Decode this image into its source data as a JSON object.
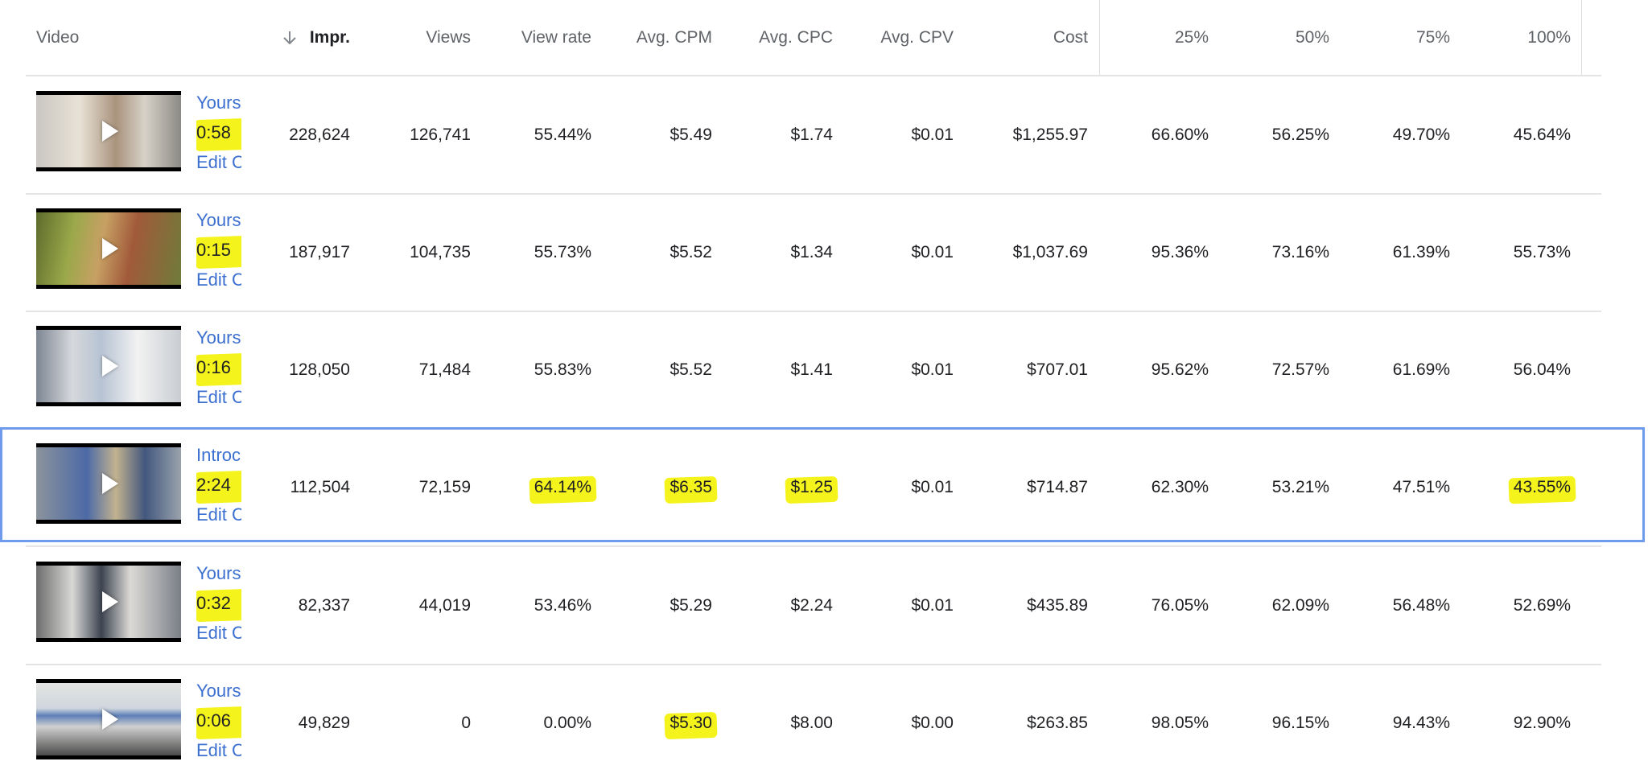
{
  "columns": [
    {
      "key": "video",
      "label": "Video"
    },
    {
      "key": "impr",
      "label": "Impr."
    },
    {
      "key": "views",
      "label": "Views"
    },
    {
      "key": "view_rate",
      "label": "View rate"
    },
    {
      "key": "avg_cpm",
      "label": "Avg. CPM"
    },
    {
      "key": "avg_cpc",
      "label": "Avg. CPC"
    },
    {
      "key": "avg_cpv",
      "label": "Avg. CPV"
    },
    {
      "key": "cost",
      "label": "Cost"
    },
    {
      "key": "p25",
      "label": "25%"
    },
    {
      "key": "p50",
      "label": "50%"
    },
    {
      "key": "p75",
      "label": "75%"
    },
    {
      "key": "p100",
      "label": "100%"
    }
  ],
  "sort": {
    "column": "impr",
    "direction": "descending",
    "icon": "arrow-down-icon"
  },
  "rows": [
    {
      "title": "Yours",
      "duration": "0:58",
      "edit": "Edit C",
      "impr": "228,624",
      "views": "126,741",
      "view_rate": "55.44%",
      "avg_cpm": "$5.49",
      "avg_cpc": "$1.74",
      "avg_cpv": "$0.01",
      "cost": "$1,255.97",
      "p25": "66.60%",
      "p50": "56.25%",
      "p75": "49.70%",
      "p100": "45.64%",
      "highlighted": [
        "duration"
      ],
      "selected": false
    },
    {
      "title": "Yours",
      "duration": "0:15",
      "edit": "Edit C",
      "impr": "187,917",
      "views": "104,735",
      "view_rate": "55.73%",
      "avg_cpm": "$5.52",
      "avg_cpc": "$1.34",
      "avg_cpv": "$0.01",
      "cost": "$1,037.69",
      "p25": "95.36%",
      "p50": "73.16%",
      "p75": "61.39%",
      "p100": "55.73%",
      "highlighted": [
        "duration"
      ],
      "selected": false
    },
    {
      "title": "Yours",
      "duration": "0:16",
      "edit": "Edit C",
      "impr": "128,050",
      "views": "71,484",
      "view_rate": "55.83%",
      "avg_cpm": "$5.52",
      "avg_cpc": "$1.41",
      "avg_cpv": "$0.01",
      "cost": "$707.01",
      "p25": "95.62%",
      "p50": "72.57%",
      "p75": "61.69%",
      "p100": "56.04%",
      "highlighted": [
        "duration"
      ],
      "selected": false
    },
    {
      "title": "Introc",
      "duration": "2:24",
      "edit": "Edit C",
      "impr": "112,504",
      "views": "72,159",
      "view_rate": "64.14%",
      "avg_cpm": "$6.35",
      "avg_cpc": "$1.25",
      "avg_cpv": "$0.01",
      "cost": "$714.87",
      "p25": "62.30%",
      "p50": "53.21%",
      "p75": "47.51%",
      "p100": "43.55%",
      "highlighted": [
        "duration",
        "view_rate",
        "avg_cpm",
        "avg_cpc",
        "p100"
      ],
      "selected": true
    },
    {
      "title": "Yours",
      "duration": "0:32",
      "edit": "Edit C",
      "impr": "82,337",
      "views": "44,019",
      "view_rate": "53.46%",
      "avg_cpm": "$5.29",
      "avg_cpc": "$2.24",
      "avg_cpv": "$0.01",
      "cost": "$435.89",
      "p25": "76.05%",
      "p50": "62.09%",
      "p75": "56.48%",
      "p100": "52.69%",
      "highlighted": [
        "duration"
      ],
      "selected": false
    },
    {
      "title": "Yours",
      "duration": "0:06",
      "edit": "Edit C",
      "impr": "49,829",
      "views": "0",
      "view_rate": "0.00%",
      "avg_cpm": "$5.30",
      "avg_cpc": "$8.00",
      "avg_cpv": "$0.00",
      "cost": "$263.85",
      "p25": "98.05%",
      "p50": "96.15%",
      "p75": "94.43%",
      "p100": "92.90%",
      "highlighted": [
        "duration",
        "avg_cpm"
      ],
      "selected": false
    }
  ],
  "colors": {
    "link": "#3b6fd0",
    "highlight": "#f4f31c",
    "selection_border": "#6f9bed",
    "header_text": "#5f6368",
    "divider": "#e4e4e4"
  }
}
